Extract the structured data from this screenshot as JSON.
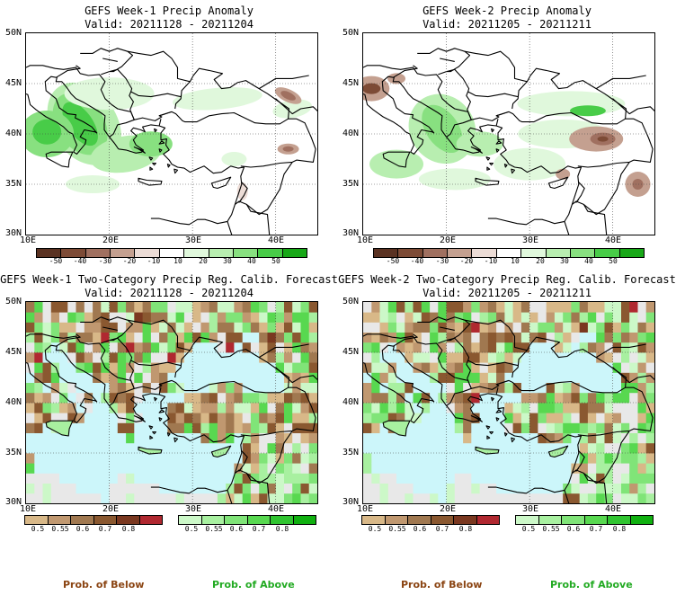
{
  "panels": [
    {
      "kind": "anomaly",
      "title": "GEFS Week-1 Precip Anomaly",
      "valid": "Valid: 20211128 - 20211204",
      "lat_labels": [
        "50N",
        "45N",
        "40N",
        "35N",
        "30N"
      ],
      "lon_labels": [
        "10E",
        "20E",
        "30E",
        "40E"
      ]
    },
    {
      "kind": "anomaly",
      "title": "GEFS Week-2 Precip Anomaly",
      "valid": "Valid: 20211205 - 20211211",
      "lat_labels": [
        "50N",
        "45N",
        "40N",
        "35N",
        "30N"
      ],
      "lon_labels": [
        "10E",
        "20E",
        "30E",
        "40E"
      ]
    },
    {
      "kind": "prob",
      "title": "GEFS Week-1 Two-Category Precip Reg. Calib. Forecast",
      "valid": "Valid: 20211128 - 20211204",
      "lat_labels": [
        "50N",
        "45N",
        "40N",
        "35N",
        "30N"
      ],
      "lon_labels": [
        "10E",
        "20E",
        "30E",
        "40E"
      ]
    },
    {
      "kind": "prob",
      "title": "GEFS Week-2 Two-Category Precip Reg. Calib. Forecast",
      "valid": "Valid: 20211205 - 20211211",
      "lat_labels": [
        "50N",
        "45N",
        "40N",
        "35N",
        "30N"
      ],
      "lon_labels": [
        "10E",
        "20E",
        "30E",
        "40E"
      ]
    }
  ],
  "anomaly_colorbar": {
    "labels": [
      "-50",
      "-40",
      "-30",
      "-20",
      "-10",
      "10",
      "20",
      "30",
      "40",
      "50"
    ],
    "colors": [
      "#5a3222",
      "#7d4b36",
      "#a07060",
      "#c4a090",
      "#ecdcd6",
      "#ffffff",
      "#e0f8dc",
      "#b8eeb0",
      "#88e080",
      "#48cc48",
      "#18a818"
    ]
  },
  "prob_below_colorbar": {
    "labels": [
      "0.5",
      "0.55",
      "0.6",
      "0.7",
      "0.8"
    ],
    "colors": [
      "#d8b888",
      "#c09870",
      "#a07850",
      "#8a5830",
      "#7a3820",
      "#b02830"
    ]
  },
  "prob_above_colorbar": {
    "labels": [
      "0.5",
      "0.55",
      "0.6",
      "0.7",
      "0.8"
    ],
    "colors": [
      "#ccf8c8",
      "#a8f0a0",
      "#80e478",
      "#58d850",
      "#30c430",
      "#10b010"
    ]
  },
  "legend": {
    "below": "Prob. of Below",
    "above": "Prob. of Above",
    "below_color": "#8b4513",
    "above_color": "#22aa22"
  },
  "map_colors": {
    "sea_prob": "#ccf6fa",
    "land_na": "#e8e8e8",
    "coast": "#000000"
  }
}
